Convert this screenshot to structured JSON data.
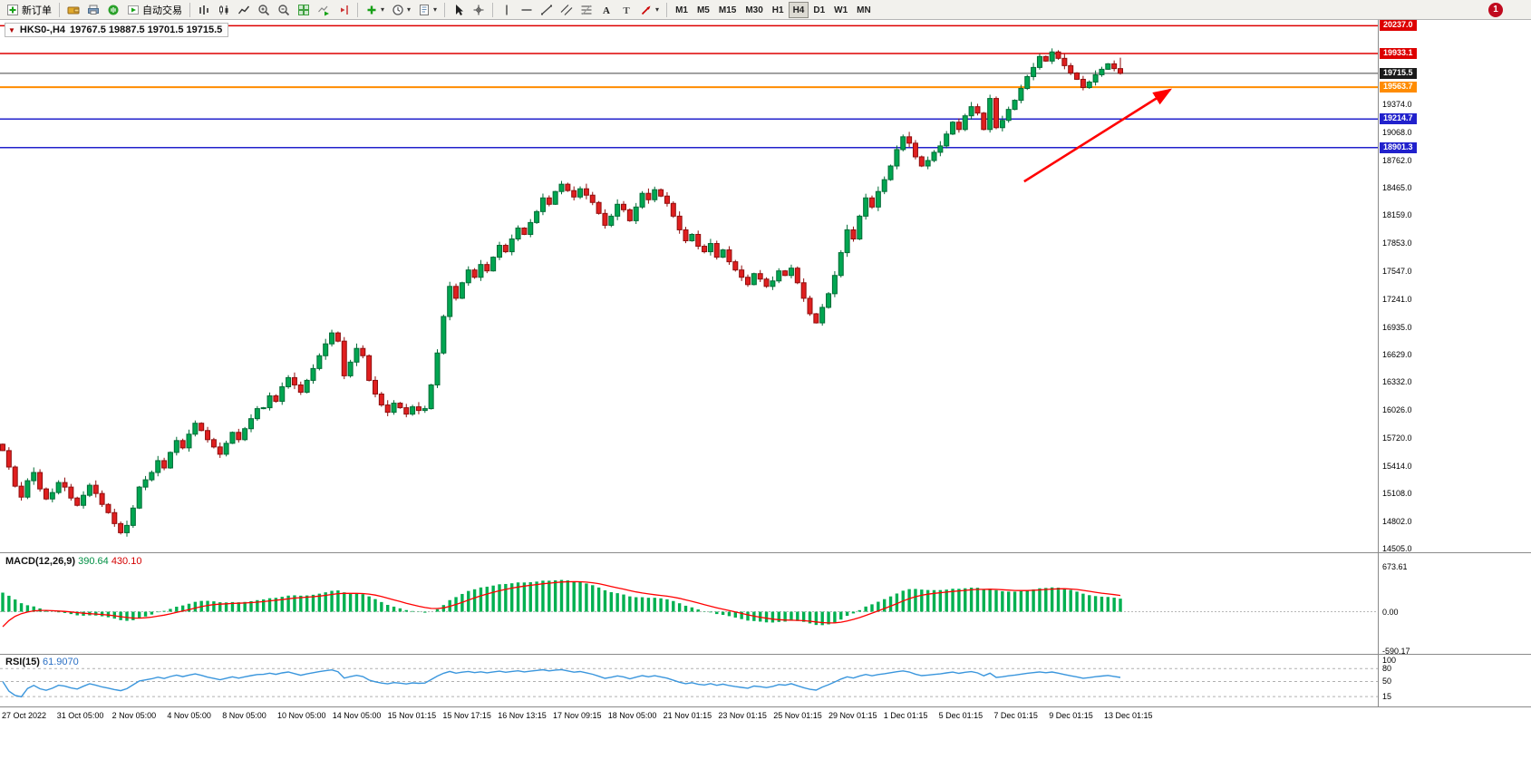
{
  "toolbar": {
    "new_order_label": "新订单",
    "auto_trading_label": "自动交易",
    "timeframes": [
      "M1",
      "M5",
      "M15",
      "M30",
      "H1",
      "H4",
      "D1",
      "W1",
      "MN"
    ],
    "active_timeframe": "H4",
    "notification_badge": "1"
  },
  "chart": {
    "title": "HKS0-,H4",
    "ohlc": "19767.5 19887.5 19701.5 19715.5"
  },
  "chart_data": {
    "type": "candlestick",
    "symbol": "HKS0-",
    "timeframe": "H4",
    "last_bar": [
      19767.5,
      19887.5,
      19701.5,
      19715.5
    ],
    "closes": [
      15580,
      15400,
      15190,
      15070,
      15250,
      15340,
      15160,
      15050,
      15120,
      15230,
      15180,
      15060,
      14980,
      15090,
      15200,
      15110,
      14990,
      14900,
      14780,
      14680,
      14760,
      14950,
      15180,
      15260,
      15340,
      15470,
      15390,
      15560,
      15690,
      15610,
      15760,
      15880,
      15800,
      15700,
      15620,
      15540,
      15660,
      15780,
      15700,
      15820,
      15930,
      16040,
      16050,
      16180,
      16120,
      16280,
      16380,
      16300,
      16220,
      16350,
      16480,
      16620,
      16750,
      16870,
      16780,
      16400,
      16550,
      16700,
      16620,
      16350,
      16200,
      16080,
      16000,
      16100,
      16050,
      15980,
      16060,
      16020,
      16040,
      16300,
      16650,
      17050,
      17380,
      17250,
      17420,
      17560,
      17480,
      17620,
      17550,
      17700,
      17830,
      17760,
      17900,
      18020,
      17950,
      18080,
      18200,
      18350,
      18280,
      18420,
      18500,
      18430,
      18360,
      18450,
      18380,
      18300,
      18180,
      18050,
      18150,
      18280,
      18220,
      18100,
      18250,
      18400,
      18330,
      18440,
      18370,
      18290,
      18150,
      18000,
      17880,
      17950,
      17820,
      17760,
      17850,
      17700,
      17780,
      17650,
      17560,
      17480,
      17400,
      17520,
      17460,
      17380,
      17440,
      17550,
      17500,
      17580,
      17420,
      17250,
      17080,
      16980,
      17150,
      17300,
      17500,
      17750,
      18000,
      17900,
      18150,
      18350,
      18250,
      18420,
      18550,
      18700,
      18880,
      19020,
      18950,
      18800,
      18700,
      18760,
      18850,
      18920,
      19050,
      19180,
      19100,
      19250,
      19350,
      19280,
      19100,
      19440,
      19120,
      19200,
      19320,
      19420,
      19550,
      19680,
      19780,
      19900,
      19850,
      19950,
      19880,
      19800,
      19720,
      19650,
      19560,
      19620,
      19700,
      19760,
      19820,
      19767.5,
      19715.5
    ],
    "colors": {
      "up": "#00a651",
      "up_stroke": "#006b35",
      "down": "#e01f1f",
      "down_stroke": "#8f0e0e",
      "macd": "#00b050",
      "signal": "#ff0000",
      "rsi": "#3a96dd"
    },
    "hlines": [
      {
        "value": 20237.0,
        "label": "20237.0",
        "color": "#dd0000",
        "width": 1.5,
        "box": "#dd0000"
      },
      {
        "value": 19933.1,
        "label": "19933.1",
        "color": "#dd0000",
        "width": 1.5,
        "box": "#dd0000"
      },
      {
        "value": 19715.5,
        "label": "19715.5",
        "color": "#444444",
        "width": 1,
        "box": "#1a1a1a"
      },
      {
        "value": 19563.7,
        "label": "19563.7",
        "color": "#ff8c00",
        "width": 2,
        "box": "#ff8c00"
      },
      {
        "value": 19214.7,
        "label": "19214.7",
        "color": "#2121cc",
        "width": 1.5,
        "box": "#2121cc"
      },
      {
        "value": 18901.3,
        "label": "18901.3",
        "color": "#2121cc",
        "width": 1.5,
        "box": "#2121cc"
      }
    ],
    "y_axis_labels": [
      "19374.0",
      "19068.0",
      "18762.0",
      "18465.0",
      "18159.0",
      "17853.0",
      "17547.0",
      "17241.0",
      "16935.0",
      "16629.0",
      "16332.0",
      "16026.0",
      "15720.0",
      "15414.0",
      "15108.0",
      "14802.0",
      "14505.0"
    ],
    "x_labels": [
      "27 Oct 2022",
      "31 Oct 05:00",
      "2 Nov 05:00",
      "4 Nov 05:00",
      "8 Nov 05:00",
      "10 Nov 05:00",
      "14 Nov 05:00",
      "15 Nov 01:15",
      "15 Nov 17:15",
      "16 Nov 13:15",
      "17 Nov 09:15",
      "18 Nov 05:00",
      "21 Nov 01:15",
      "23 Nov 01:15",
      "25 Nov 01:15",
      "29 Nov 01:15",
      "1 Dec 01:15",
      "5 Dec 01:15",
      "7 Dec 01:15",
      "9 Dec 01:15",
      "13 Dec 01:15"
    ],
    "arrow": {
      "from_bar": 164.5,
      "from_price": 18530,
      "to_bar": 188,
      "to_price": 19535,
      "color": "#ff0000"
    },
    "indicators": {
      "macd": {
        "label": "MACD(12,26,9)",
        "value_main": "390.64",
        "value_signal": "430.10",
        "axis": [
          {
            "t": "673.61",
            "v": 673.61
          },
          {
            "t": "0.00",
            "v": 0
          },
          {
            "t": "-590.17",
            "v": -590.17
          }
        ]
      },
      "rsi": {
        "label": "RSI(15)",
        "value": "61.9070",
        "levels": [
          80,
          50,
          15
        ],
        "axis": [
          {
            "t": "100",
            "v": 100
          },
          {
            "t": "80",
            "v": 80
          },
          {
            "t": "50",
            "v": 50
          },
          {
            "t": "15",
            "v": 15
          }
        ]
      }
    }
  }
}
